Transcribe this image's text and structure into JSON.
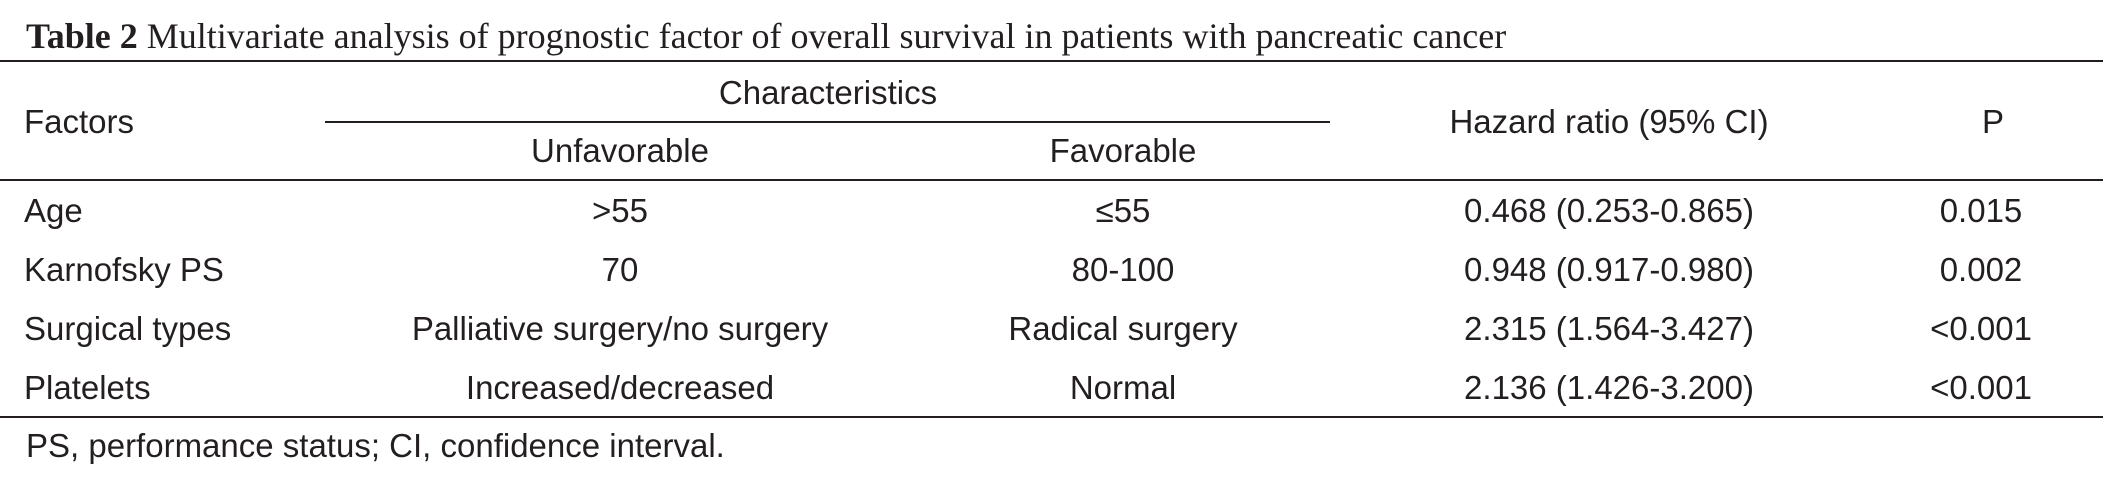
{
  "caption": {
    "label": "Table 2",
    "text": "Multivariate analysis of prognostic factor of overall survival in patients with pancreatic cancer"
  },
  "table": {
    "headers": {
      "factors": "Factors",
      "characteristics": "Characteristics",
      "unfavorable": "Unfavorable",
      "favorable": "Favorable",
      "hazard_ratio": "Hazard ratio (95% CI)",
      "p": "P"
    },
    "rows": [
      {
        "factor": "Age",
        "unfavorable": ">55",
        "favorable": "≤55",
        "hazard_ratio": "0.468 (0.253-0.865)",
        "p": "0.015"
      },
      {
        "factor": "Karnofsky PS",
        "unfavorable": "70",
        "favorable": "80-100",
        "hazard_ratio": "0.948 (0.917-0.980)",
        "p": "0.002"
      },
      {
        "factor": "Surgical types",
        "unfavorable": "Palliative surgery/no surgery",
        "favorable": "Radical surgery",
        "hazard_ratio": "2.315 (1.564-3.427)",
        "p": "<0.001"
      },
      {
        "factor": "Platelets",
        "unfavorable": "Increased/decreased",
        "favorable": "Normal",
        "hazard_ratio": "2.136 (1.426-3.200)",
        "p": "<0.001"
      }
    ]
  },
  "footnote": "PS, performance status; CI, confidence interval."
}
